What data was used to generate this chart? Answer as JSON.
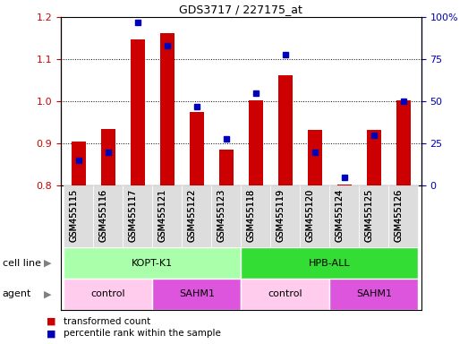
{
  "title": "GDS3717 / 227175_at",
  "samples": [
    "GSM455115",
    "GSM455116",
    "GSM455117",
    "GSM455121",
    "GSM455122",
    "GSM455123",
    "GSM455118",
    "GSM455119",
    "GSM455120",
    "GSM455124",
    "GSM455125",
    "GSM455126"
  ],
  "red_values": [
    0.905,
    0.935,
    1.148,
    1.163,
    0.975,
    0.886,
    1.002,
    1.063,
    0.932,
    0.802,
    0.932,
    1.002
  ],
  "blue_values": [
    15,
    20,
    97,
    83,
    47,
    28,
    55,
    78,
    20,
    5,
    30,
    50
  ],
  "ylim_left": [
    0.8,
    1.2
  ],
  "ylim_right": [
    0,
    100
  ],
  "yticks_left": [
    0.8,
    0.9,
    1.0,
    1.1,
    1.2
  ],
  "yticks_right": [
    0,
    25,
    50,
    75,
    100
  ],
  "cell_line_groups": [
    {
      "label": "KOPT-K1",
      "start": 0,
      "end": 6,
      "color": "#AAFFAA"
    },
    {
      "label": "HPB-ALL",
      "start": 6,
      "end": 12,
      "color": "#33DD33"
    }
  ],
  "agent_groups": [
    {
      "label": "control",
      "start": 0,
      "end": 3,
      "color": "#FFCCEE"
    },
    {
      "label": "SAHM1",
      "start": 3,
      "end": 6,
      "color": "#DD55DD"
    },
    {
      "label": "control",
      "start": 6,
      "end": 9,
      "color": "#FFCCEE"
    },
    {
      "label": "SAHM1",
      "start": 9,
      "end": 12,
      "color": "#DD55DD"
    }
  ],
  "bar_color": "#CC0000",
  "dot_color": "#0000BB",
  "bar_base": 0.8,
  "tick_color_left": "#CC0000",
  "tick_color_right": "#0000BB",
  "legend_red_label": "transformed count",
  "legend_blue_label": "percentile rank within the sample",
  "cell_line_label": "cell line",
  "agent_label": "agent"
}
